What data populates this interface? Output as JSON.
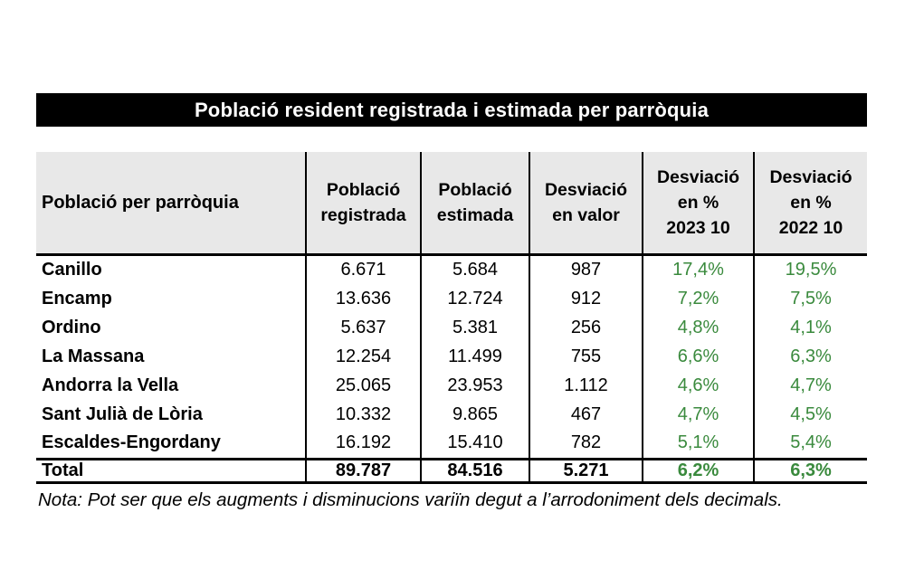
{
  "chart_data": {
    "type": "table",
    "title": "Població resident registrada i estimada per parròquia",
    "columns": [
      "Població per parròquia",
      "Població\nregistrada",
      "Població\nestimada",
      "Desviació\nen valor",
      "Desviació\nen %\n2023 10",
      "Desviació\nen %\n2022 10"
    ],
    "rows": [
      {
        "parish": "Canillo",
        "registered": "6.671",
        "estimated": "5.684",
        "deviation": "987",
        "pct_2023": "17,4%",
        "pct_2022": "19,5%"
      },
      {
        "parish": "Encamp",
        "registered": "13.636",
        "estimated": "12.724",
        "deviation": "912",
        "pct_2023": "7,2%",
        "pct_2022": "7,5%"
      },
      {
        "parish": "Ordino",
        "registered": "5.637",
        "estimated": "5.381",
        "deviation": "256",
        "pct_2023": "4,8%",
        "pct_2022": "4,1%"
      },
      {
        "parish": "La Massana",
        "registered": "12.254",
        "estimated": "11.499",
        "deviation": "755",
        "pct_2023": "6,6%",
        "pct_2022": "6,3%"
      },
      {
        "parish": "Andorra la Vella",
        "registered": "25.065",
        "estimated": "23.953",
        "deviation": "1.112",
        "pct_2023": "4,6%",
        "pct_2022": "4,7%"
      },
      {
        "parish": "Sant Julià de Lòria",
        "registered": "10.332",
        "estimated": "9.865",
        "deviation": "467",
        "pct_2023": "4,7%",
        "pct_2022": "4,5%"
      },
      {
        "parish": "Escaldes-Engordany",
        "registered": "16.192",
        "estimated": "15.410",
        "deviation": "782",
        "pct_2023": "5,1%",
        "pct_2022": "5,4%"
      }
    ],
    "total_row": {
      "parish": "Total",
      "registered": "89.787",
      "estimated": "84.516",
      "deviation": "5.271",
      "pct_2023": "6,2%",
      "pct_2022": "6,3%"
    },
    "note": "Nota: Pot ser que els augments i disminucions variïn degut a l’arrodoniment dels decimals."
  },
  "colors": {
    "title_bg": "#000000",
    "title_text": "#ffffff",
    "header_bg": "#e8e8e8",
    "percent_green": "#3a8a3d",
    "border": "#000000"
  }
}
